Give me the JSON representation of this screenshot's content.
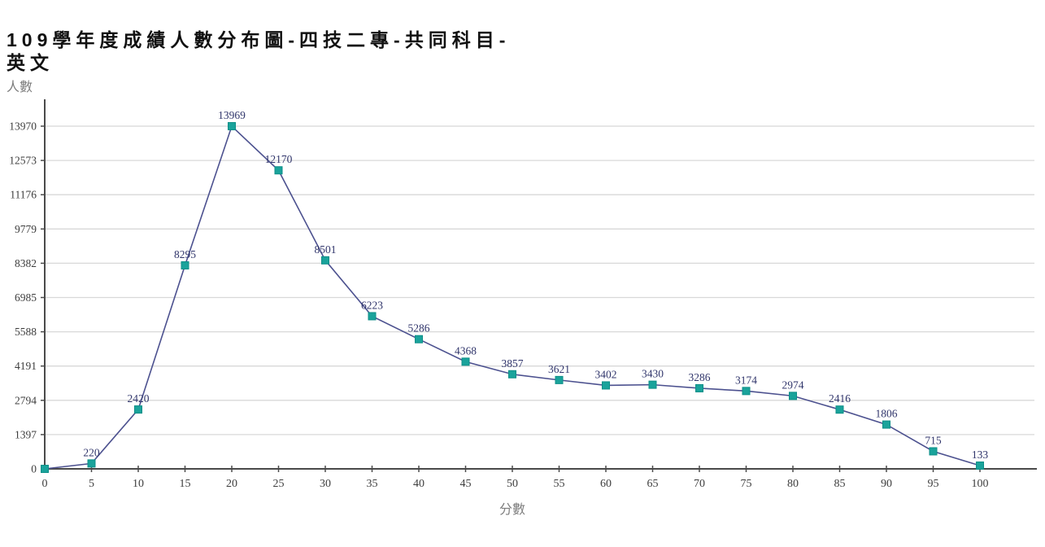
{
  "title": "109學年度成績人數分布圖-四技二專-共同科目-英文",
  "chart_data": {
    "type": "line",
    "title": "109學年度成績人數分布圖-四技二專-共同科目-英文",
    "xlabel": "分數",
    "ylabel": "人數",
    "x": [
      0,
      5,
      10,
      15,
      20,
      25,
      30,
      35,
      40,
      45,
      50,
      55,
      60,
      65,
      70,
      75,
      80,
      85,
      90,
      95,
      100
    ],
    "values": [
      0,
      220,
      2420,
      8295,
      13969,
      12170,
      8501,
      6223,
      5286,
      4368,
      3857,
      3621,
      3402,
      3430,
      3286,
      3174,
      2974,
      2416,
      1806,
      715,
      133
    ],
    "point_labels": [
      "",
      "220",
      "2420",
      "8295",
      "13969",
      "12170",
      "8501",
      "6223",
      "5286",
      "4368",
      "3857",
      "3621",
      "3402",
      "3430",
      "3286",
      "3174",
      "2974",
      "2416",
      "1806",
      "715",
      "133"
    ],
    "xlim": [
      0,
      100
    ],
    "ylim": [
      0,
      13970
    ],
    "x_ticks": [
      0,
      5,
      10,
      15,
      20,
      25,
      30,
      35,
      40,
      45,
      50,
      55,
      60,
      65,
      70,
      75,
      80,
      85,
      90,
      95,
      100
    ],
    "y_ticks": [
      0,
      1397,
      2794,
      4191,
      5588,
      6985,
      8382,
      9779,
      11176,
      12573,
      13970
    ],
    "grid": "horizontal",
    "legend": "none",
    "marker": "square",
    "colors": {
      "line": "#4c518f",
      "marker_fill": "#1aa39b",
      "marker_stroke": "#0d8f88",
      "point_label": "#30356b",
      "grid": "#d8d8d8",
      "axis": "#4a4a4a",
      "tick_text": "#3d3d3d"
    }
  }
}
